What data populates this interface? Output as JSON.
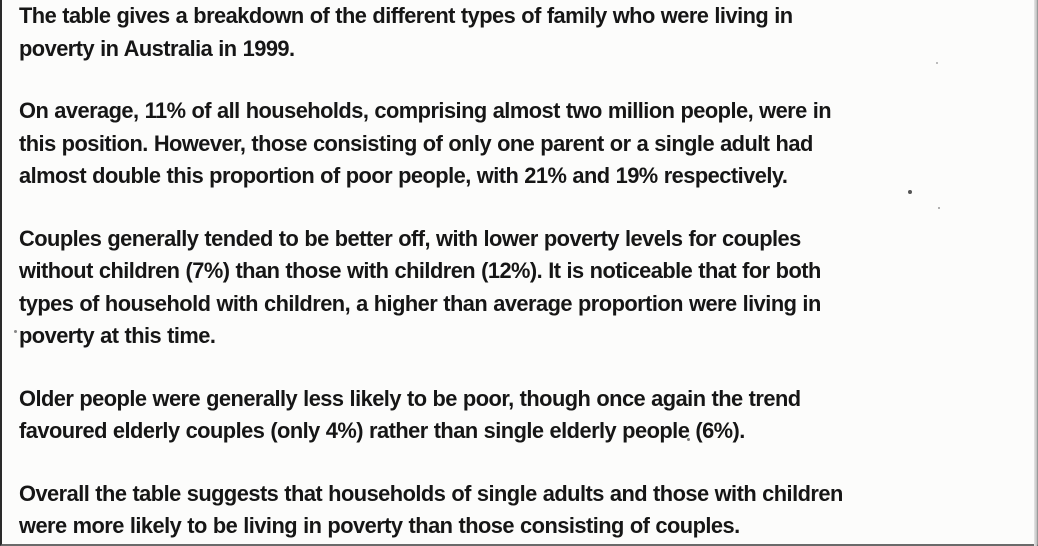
{
  "document": {
    "paragraphs": [
      {
        "lines": [
          "The table gives a breakdown of the different types of family who were living in",
          "poverty in Australia in 1999."
        ]
      },
      {
        "lines": [
          "On average, 11% of all households, comprising almost two million people, were in",
          "this position. However, those consisting of only one parent or a single adult had",
          "almost double this proportion of poor people, with 21% and 19% respectively."
        ]
      },
      {
        "lines": [
          "Couples generally tended to be better off, with lower poverty levels for couples",
          "without children (7%) than those with children (12%). It is noticeable that for both",
          "types of household with children, a higher than average proportion were living in",
          "poverty at this time."
        ]
      },
      {
        "lines": [
          "Older people were generally less likely to be poor, though once again the trend",
          "favoured elderly couples (only 4%) rather than single elderly people (6%)."
        ]
      },
      {
        "lines": [
          "Overall the table suggests that households of single adults and those with children",
          "were more likely to be living in poverty than those consisting of couples."
        ]
      }
    ]
  }
}
